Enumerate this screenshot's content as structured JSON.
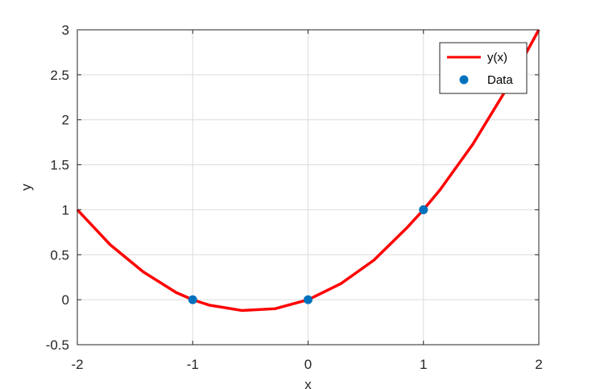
{
  "chart_data": {
    "type": "line",
    "title": "",
    "xlabel": "x",
    "ylabel": "y",
    "xlim": [
      -2,
      2
    ],
    "ylim": [
      -0.5,
      3
    ],
    "xticks": [
      -2,
      -1,
      0,
      1,
      2
    ],
    "xtick_labels": [
      "-2",
      "-1",
      "0",
      "1",
      "2"
    ],
    "yticks": [
      -0.5,
      0,
      0.5,
      1,
      1.5,
      2,
      2.5,
      3
    ],
    "ytick_labels": [
      "-0.5",
      "0",
      "0.5",
      "1",
      "1.5",
      "2",
      "2.5",
      "3"
    ],
    "grid": true,
    "legend_position": "top-right",
    "series": [
      {
        "name": "y(x)",
        "kind": "line",
        "color": "#ff0000",
        "x": [
          -2,
          -1.714,
          -1.429,
          -1.143,
          -1,
          -0.857,
          -0.571,
          -0.286,
          0,
          0.286,
          0.571,
          0.857,
          1,
          1.143,
          1.429,
          1.714,
          2
        ],
        "y": [
          1,
          0.61,
          0.31,
          0.08,
          0,
          -0.06,
          -0.12,
          -0.1,
          0,
          0.18,
          0.44,
          0.8,
          1,
          1.22,
          1.73,
          2.33,
          3
        ]
      },
      {
        "name": "Data",
        "kind": "scatter",
        "color": "#0072bd",
        "x": [
          -1,
          0,
          1
        ],
        "y": [
          0,
          0,
          1
        ]
      }
    ]
  }
}
